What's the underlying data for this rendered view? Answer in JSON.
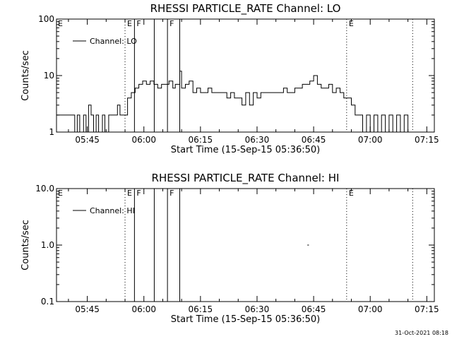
{
  "footer": "31-Oct-2021 08:18",
  "chart_data": [
    {
      "type": "line",
      "title": "RHESSI PARTICLE_RATE Channel: LO",
      "xlabel": "Start Time (15-Sep-15 05:36:50)",
      "ylabel": "Counts/sec",
      "yscale": "log",
      "ylim": [
        1,
        100
      ],
      "yticks": [
        1,
        10,
        100
      ],
      "ytick_labels": [
        "1",
        "10",
        "100"
      ],
      "xlim": [
        "05:36:50",
        "07:17:00"
      ],
      "xticks": [
        "05:45",
        "06:00",
        "06:15",
        "06:30",
        "06:45",
        "07:00",
        "07:15"
      ],
      "legend": {
        "label": "Channel: LO",
        "position": "top-left"
      },
      "flag_markers": [
        {
          "time": "05:55:00",
          "label": "E",
          "style": "dotted"
        },
        {
          "time": "05:57:30",
          "label": "F",
          "style": "solid"
        },
        {
          "time": "06:02:45",
          "label": "",
          "style": "solid"
        },
        {
          "time": "06:06:15",
          "label": "F",
          "style": "solid"
        },
        {
          "time": "06:09:30",
          "label": "",
          "style": "solid"
        },
        {
          "time": "06:53:45",
          "label": "E",
          "style": "dotted"
        },
        {
          "time": "07:11:15",
          "label": "",
          "style": "dotted"
        }
      ],
      "corner_label": "E",
      "series": [
        {
          "name": "Channel: LO",
          "x": [
            "05:36:50",
            "05:39:00",
            "05:41:00",
            "05:41:40",
            "05:42:20",
            "05:43:00",
            "05:44:00",
            "05:44:40",
            "05:45:20",
            "05:46:00",
            "05:46:40",
            "05:47:20",
            "05:48:00",
            "05:49:00",
            "05:49:40",
            "05:50:40",
            "05:51:40",
            "05:52:40",
            "05:53:00",
            "05:53:40",
            "05:54:20",
            "05:55:40",
            "05:56:40",
            "05:57:40",
            "05:58:40",
            "05:59:40",
            "06:00:40",
            "06:01:40",
            "06:02:40",
            "06:03:40",
            "06:04:40",
            "06:05:40",
            "06:06:40",
            "06:07:40",
            "06:08:20",
            "06:09:00",
            "06:09:30",
            "06:10:00",
            "06:11:00",
            "06:12:00",
            "06:13:00",
            "06:14:00",
            "06:15:00",
            "06:16:00",
            "06:17:00",
            "06:18:00",
            "06:19:00",
            "06:20:00",
            "06:21:00",
            "06:22:00",
            "06:23:00",
            "06:24:00",
            "06:25:00",
            "06:26:00",
            "06:27:00",
            "06:28:00",
            "06:29:00",
            "06:30:00",
            "06:31:00",
            "06:32:00",
            "06:33:00",
            "06:34:00",
            "06:35:00",
            "06:36:00",
            "06:37:00",
            "06:38:00",
            "06:39:00",
            "06:40:00",
            "06:41:00",
            "06:42:00",
            "06:43:00",
            "06:44:00",
            "06:45:00",
            "06:46:00",
            "06:47:00",
            "06:48:00",
            "06:49:00",
            "06:50:00",
            "06:51:00",
            "06:52:00",
            "06:53:00",
            "06:54:00",
            "06:55:00",
            "06:56:00",
            "06:57:00",
            "06:58:00",
            "06:59:00",
            "07:00:00",
            "07:01:00",
            "07:02:00",
            "07:03:00",
            "07:04:00",
            "07:05:00",
            "07:06:00",
            "07:07:00",
            "07:08:00",
            "07:09:00",
            "07:10:00",
            "07:11:00"
          ],
          "y": [
            2,
            2,
            2,
            1,
            2,
            1,
            2,
            1,
            3,
            2,
            1,
            2,
            1,
            2,
            1,
            2,
            2,
            2,
            3,
            2,
            2,
            4,
            5,
            6,
            7,
            8,
            7,
            8,
            7,
            6,
            7,
            7,
            8,
            6,
            7,
            7,
            12,
            6,
            7,
            8,
            5,
            6,
            5,
            5,
            6,
            5,
            5,
            5,
            5,
            4,
            5,
            4,
            4,
            3,
            5,
            3,
            5,
            4,
            5,
            5,
            5,
            5,
            5,
            5,
            6,
            5,
            5,
            6,
            6,
            7,
            7,
            8,
            10,
            7,
            6,
            6,
            7,
            5,
            6,
            5,
            4,
            4,
            3,
            2,
            2,
            1,
            2,
            1,
            2,
            1,
            2,
            1,
            2,
            1,
            2,
            1,
            2,
            1,
            1
          ]
        }
      ]
    },
    {
      "type": "line",
      "title": "RHESSI PARTICLE_RATE Channel: HI",
      "xlabel": "Start Time (15-Sep-15 05:36:50)",
      "ylabel": "Counts/sec",
      "yscale": "log",
      "ylim": [
        0.1,
        10
      ],
      "yticks": [
        0.1,
        1,
        10
      ],
      "ytick_labels": [
        "0.1",
        "1.0",
        "10.0"
      ],
      "xlim": [
        "05:36:50",
        "07:17:00"
      ],
      "xticks": [
        "05:45",
        "06:00",
        "06:15",
        "06:30",
        "06:45",
        "07:00",
        "07:15"
      ],
      "legend": {
        "label": "Channel: HI",
        "position": "top-left"
      },
      "flag_markers": [
        {
          "time": "05:55:00",
          "label": "E",
          "style": "dotted"
        },
        {
          "time": "05:57:30",
          "label": "F",
          "style": "solid"
        },
        {
          "time": "06:02:45",
          "label": "",
          "style": "solid"
        },
        {
          "time": "06:06:15",
          "label": "F",
          "style": "solid"
        },
        {
          "time": "06:09:30",
          "label": "",
          "style": "solid"
        },
        {
          "time": "06:53:45",
          "label": "E",
          "style": "dotted"
        },
        {
          "time": "07:11:15",
          "label": "",
          "style": "dotted"
        }
      ],
      "corner_label": "E",
      "series": [
        {
          "name": "Channel: HI",
          "x": [
            "06:43:20",
            "06:43:45"
          ],
          "y": [
            1,
            1
          ]
        }
      ]
    }
  ]
}
